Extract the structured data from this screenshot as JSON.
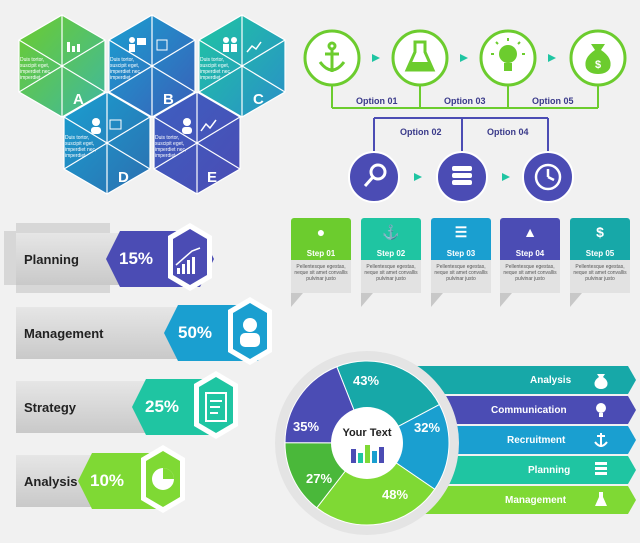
{
  "hexes": [
    {
      "letter": "A",
      "text": "Duis tortor, suscipit eget, imperdiet nec, imperdiet"
    },
    {
      "letter": "B",
      "text": "Duis tortor, suscipit eget, imperdiet nec, imperdiet"
    },
    {
      "letter": "C",
      "text": "Duis tortor, suscipit eget, imperdiet nec, imperdiet"
    },
    {
      "letter": "D",
      "text": "Duis tortor, suscipit eget, imperdiet nec, imperdiet"
    },
    {
      "letter": "E",
      "text": "Duis tortor, suscipit eget, imperdiet nec, imperdiet"
    }
  ],
  "process": {
    "options": [
      "Option 01",
      "Option 02",
      "Option 03",
      "Option 04",
      "Option 05"
    ],
    "top_icons": [
      "anchor-icon",
      "flask-icon",
      "bulb-icon",
      "money-bag-icon"
    ],
    "bottom_icons": [
      "search-icon",
      "coins-icon",
      "clock-icon"
    ]
  },
  "steps": [
    {
      "label": "Step 01",
      "icon": "bulb-icon",
      "color": "#6ccc2e",
      "text": "Pellentesque egestas, neque sit amet convallis pulvinar justo"
    },
    {
      "label": "Step 02",
      "icon": "anchor-icon",
      "color": "#1fc5a2",
      "text": "Pellentesque egestas, neque sit amet convallis pulvinar justo"
    },
    {
      "label": "Step 03",
      "icon": "coins-icon",
      "color": "#1a9fd0",
      "text": "Pellentesque egestas, neque sit amet convallis pulvinar justo"
    },
    {
      "label": "Step 04",
      "icon": "flask-icon",
      "color": "#4b4cb4",
      "text": "Pellentesque egestas, neque sit amet convallis pulvinar justo"
    },
    {
      "label": "Step 05",
      "icon": "money-bag-icon",
      "color": "#17a8a8",
      "text": "Pellentesque egestas, neque sit amet convallis pulvinar justo"
    }
  ],
  "bars": [
    {
      "label": "Planning",
      "pct": "15%",
      "value": 15,
      "color": "#4b4cb4",
      "icon": "growth-chart-icon"
    },
    {
      "label": "Management",
      "pct": "50%",
      "value": 50,
      "color": "#1a9fd0",
      "icon": "person-icon"
    },
    {
      "label": "Strategy",
      "pct": "25%",
      "value": 25,
      "color": "#1fc5a2",
      "icon": "bar-list-icon"
    },
    {
      "label": "Analysis",
      "pct": "10%",
      "value": 10,
      "color": "#7fd934",
      "icon": "pie-icon"
    }
  ],
  "donut": {
    "center_title": "Your Text",
    "slices": [
      {
        "pct": "43%",
        "value": 43,
        "color": "#17a8a8"
      },
      {
        "pct": "32%",
        "value": 32,
        "color": "#1a9fd0"
      },
      {
        "pct": "48%",
        "value": 48,
        "color": "#7fd934"
      },
      {
        "pct": "27%",
        "value": 27,
        "color": "#4ab83a"
      },
      {
        "pct": "35%",
        "value": 35,
        "color": "#4b4cb4"
      }
    ]
  },
  "ribbons": [
    {
      "label": "Analysis",
      "icon": "money-bag-icon",
      "color": "#17a8a8"
    },
    {
      "label": "Communication",
      "icon": "bulb-icon",
      "color": "#4b4cb4"
    },
    {
      "label": "Recruitment",
      "icon": "anchor-icon",
      "color": "#1a9fd0"
    },
    {
      "label": "Planning",
      "icon": "coins-icon",
      "color": "#1fc5a2"
    },
    {
      "label": "Management",
      "icon": "flask-icon",
      "color": "#7fd934"
    }
  ]
}
